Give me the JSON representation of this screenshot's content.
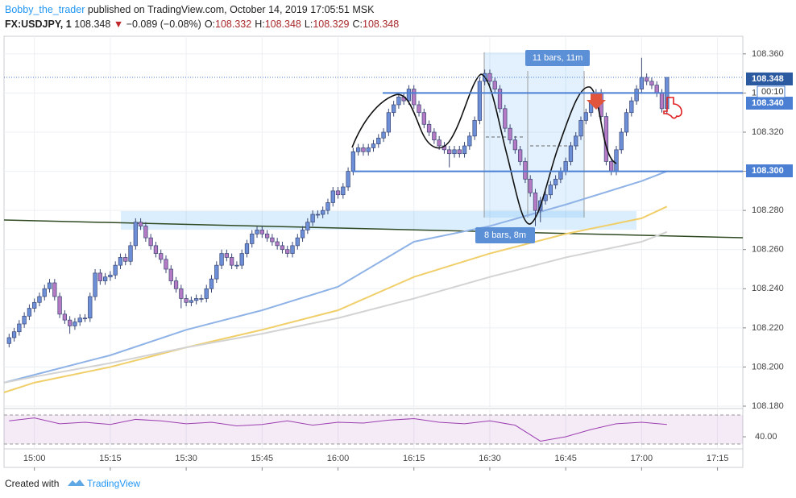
{
  "header": {
    "user": "Bobby_the_trader",
    "published": " published on TradingView.com, October 14, 2019 17:05:51 MSK",
    "symbol": "FX:USDJPY, 1",
    "last": "108.348",
    "change": "−0.089 (−0.08%)",
    "ohlc": [
      {
        "label": "O:",
        "value": "108.332"
      },
      {
        "label": "H:",
        "value": "108.348"
      },
      {
        "label": "L:",
        "value": "108.329"
      },
      {
        "label": "C:",
        "value": "108.348"
      }
    ]
  },
  "footer": {
    "created": "Created with",
    "brand": "TradingView"
  },
  "chart_data": {
    "type": "candlestick",
    "up_color": "#6d8fd8",
    "down_color": "#b57ac4",
    "outline": "#3a4775",
    "grid": true,
    "xlim": [
      894,
      1040
    ],
    "ylim": [
      108.18,
      108.369
    ],
    "xticks": [
      {
        "value": 900,
        "label": "15:00"
      },
      {
        "value": 915,
        "label": "15:15"
      },
      {
        "value": 930,
        "label": "15:30"
      },
      {
        "value": 945,
        "label": "15:45"
      },
      {
        "value": 960,
        "label": "16:00"
      },
      {
        "value": 975,
        "label": "16:15"
      },
      {
        "value": 990,
        "label": "16:30"
      },
      {
        "value": 1005,
        "label": "16:45"
      },
      {
        "value": 1020,
        "label": "17:00"
      },
      {
        "value": 1035,
        "label": "17:15"
      }
    ],
    "yticks": [
      {
        "value": 108.36,
        "label": "108.360"
      },
      {
        "value": 108.34,
        "label": "108.340"
      },
      {
        "value": 108.32,
        "label": "108.320"
      },
      {
        "value": 108.3,
        "label": "108.300"
      },
      {
        "value": 108.28,
        "label": "108.280"
      },
      {
        "value": 108.26,
        "label": "108.260"
      },
      {
        "value": 108.24,
        "label": "108.240"
      },
      {
        "value": 108.22,
        "label": "108.220"
      },
      {
        "value": 108.2,
        "label": "108.200"
      },
      {
        "value": 108.18,
        "label": "108.180"
      }
    ],
    "x": [
      895,
      896,
      897,
      898,
      899,
      900,
      901,
      902,
      903,
      904,
      905,
      906,
      907,
      908,
      909,
      910,
      911,
      912,
      913,
      914,
      915,
      916,
      917,
      918,
      919,
      920,
      921,
      922,
      923,
      924,
      925,
      926,
      927,
      928,
      929,
      930,
      931,
      932,
      933,
      934,
      935,
      936,
      937,
      938,
      939,
      940,
      941,
      942,
      943,
      944,
      945,
      946,
      947,
      948,
      949,
      950,
      951,
      952,
      953,
      954,
      955,
      956,
      957,
      958,
      959,
      960,
      961,
      962,
      963,
      964,
      965,
      966,
      967,
      968,
      969,
      970,
      971,
      972,
      973,
      974,
      975,
      976,
      977,
      978,
      979,
      980,
      981,
      982,
      983,
      984,
      985,
      986,
      987,
      988,
      989,
      990,
      991,
      992,
      993,
      994,
      995,
      996,
      997,
      998,
      999,
      1000,
      1001,
      1002,
      1003,
      1004,
      1005,
      1006,
      1007,
      1008,
      1009,
      1010,
      1011,
      1012,
      1013,
      1014,
      1015,
      1016,
      1017,
      1018,
      1019,
      1020,
      1021,
      1022,
      1023,
      1024,
      1025
    ],
    "candles": [
      [
        108.212,
        108.217,
        108.21,
        108.215
      ],
      [
        108.215,
        108.22,
        108.213,
        108.218
      ],
      [
        108.218,
        108.224,
        108.216,
        108.222
      ],
      [
        108.222,
        108.228,
        108.22,
        108.226
      ],
      [
        108.226,
        108.232,
        108.224,
        108.23
      ],
      [
        108.23,
        108.235,
        108.228,
        108.233
      ],
      [
        108.233,
        108.238,
        108.231,
        108.236
      ],
      [
        108.236,
        108.242,
        108.234,
        108.24
      ],
      [
        108.24,
        108.245,
        108.238,
        108.243
      ],
      [
        108.243,
        108.245,
        108.234,
        108.236
      ],
      [
        108.236,
        108.238,
        108.225,
        108.227
      ],
      [
        108.227,
        108.229,
        108.222,
        108.224
      ],
      [
        108.224,
        108.226,
        108.217,
        108.221
      ],
      [
        108.221,
        108.225,
        108.219,
        108.223
      ],
      [
        108.223,
        108.227,
        108.221,
        108.225
      ],
      [
        108.225,
        108.227,
        108.223,
        108.225
      ],
      [
        108.225,
        108.238,
        108.223,
        108.236
      ],
      [
        108.236,
        108.25,
        108.234,
        108.248
      ],
      [
        108.248,
        108.25,
        108.242,
        108.244
      ],
      [
        108.244,
        108.248,
        108.242,
        108.246
      ],
      [
        108.246,
        108.249,
        108.244,
        108.247
      ],
      [
        108.247,
        108.254,
        108.245,
        108.252
      ],
      [
        108.252,
        108.258,
        108.25,
        108.256
      ],
      [
        108.256,
        108.258,
        108.252,
        108.254
      ],
      [
        108.254,
        108.264,
        108.252,
        108.262
      ],
      [
        108.262,
        108.276,
        108.26,
        108.274
      ],
      [
        108.274,
        108.276,
        108.27,
        108.272
      ],
      [
        108.272,
        108.274,
        108.264,
        108.266
      ],
      [
        108.266,
        108.268,
        108.26,
        108.262
      ],
      [
        108.262,
        108.264,
        108.256,
        108.258
      ],
      [
        108.258,
        108.26,
        108.253,
        108.255
      ],
      [
        108.255,
        108.257,
        108.248,
        108.25
      ],
      [
        108.25,
        108.252,
        108.242,
        108.244
      ],
      [
        108.244,
        108.246,
        108.238,
        108.24
      ],
      [
        108.24,
        108.242,
        108.23,
        108.235
      ],
      [
        108.235,
        108.237,
        108.231,
        108.233
      ],
      [
        108.233,
        108.236,
        108.231,
        108.234
      ],
      [
        108.234,
        108.237,
        108.232,
        108.235
      ],
      [
        108.235,
        108.237,
        108.233,
        108.235
      ],
      [
        108.235,
        108.242,
        108.233,
        108.24
      ],
      [
        108.24,
        108.247,
        108.238,
        108.245
      ],
      [
        108.245,
        108.254,
        108.243,
        108.252
      ],
      [
        108.252,
        108.26,
        108.25,
        108.258
      ],
      [
        108.258,
        108.26,
        108.254,
        108.256
      ],
      [
        108.256,
        108.258,
        108.25,
        108.252
      ],
      [
        108.252,
        108.254,
        108.25,
        108.252
      ],
      [
        108.252,
        108.26,
        108.25,
        108.258
      ],
      [
        108.258,
        108.265,
        108.256,
        108.263
      ],
      [
        108.263,
        108.27,
        108.261,
        108.268
      ],
      [
        108.268,
        108.272,
        108.266,
        108.27
      ],
      [
        108.27,
        108.272,
        108.266,
        108.268
      ],
      [
        108.268,
        108.27,
        108.264,
        108.266
      ],
      [
        108.266,
        108.268,
        108.262,
        108.264
      ],
      [
        108.264,
        108.266,
        108.26,
        108.262
      ],
      [
        108.262,
        108.264,
        108.258,
        108.26
      ],
      [
        108.26,
        108.262,
        108.256,
        108.258
      ],
      [
        108.258,
        108.264,
        108.256,
        108.262
      ],
      [
        108.262,
        108.268,
        108.26,
        108.266
      ],
      [
        108.266,
        108.272,
        108.264,
        108.27
      ],
      [
        108.27,
        108.276,
        108.268,
        108.274
      ],
      [
        108.274,
        108.28,
        108.272,
        108.278
      ],
      [
        108.278,
        108.28,
        108.276,
        108.278
      ],
      [
        108.278,
        108.282,
        108.276,
        108.28
      ],
      [
        108.28,
        108.286,
        108.278,
        108.284
      ],
      [
        108.284,
        108.292,
        108.282,
        108.29
      ],
      [
        108.29,
        108.292,
        108.286,
        108.288
      ],
      [
        108.288,
        108.294,
        108.286,
        108.292
      ],
      [
        108.292,
        108.302,
        108.29,
        108.3
      ],
      [
        108.3,
        108.312,
        108.298,
        108.31
      ],
      [
        108.31,
        108.314,
        108.308,
        108.312
      ],
      [
        108.312,
        108.314,
        108.308,
        108.31
      ],
      [
        108.31,
        108.314,
        108.308,
        108.312
      ],
      [
        108.312,
        108.316,
        108.31,
        108.314
      ],
      [
        108.314,
        108.319,
        108.312,
        108.317
      ],
      [
        108.317,
        108.322,
        108.315,
        108.32
      ],
      [
        108.32,
        108.332,
        108.318,
        108.33
      ],
      [
        108.33,
        108.336,
        108.328,
        108.334
      ],
      [
        108.334,
        108.34,
        108.332,
        108.338
      ],
      [
        108.338,
        108.34,
        108.334,
        108.336
      ],
      [
        108.336,
        108.344,
        108.334,
        108.342
      ],
      [
        108.342,
        108.344,
        108.332,
        108.334
      ],
      [
        108.334,
        108.336,
        108.328,
        108.33
      ],
      [
        108.33,
        108.332,
        108.322,
        108.324
      ],
      [
        108.324,
        108.326,
        108.318,
        108.32
      ],
      [
        108.32,
        108.322,
        108.314,
        108.316
      ],
      [
        108.316,
        108.318,
        108.311,
        108.313
      ],
      [
        108.313,
        108.315,
        108.309,
        108.311
      ],
      [
        108.311,
        108.313,
        108.302,
        108.309
      ],
      [
        108.309,
        108.313,
        108.307,
        108.311
      ],
      [
        108.311,
        108.313,
        108.307,
        108.309
      ],
      [
        108.309,
        108.315,
        108.307,
        108.313
      ],
      [
        108.313,
        108.32,
        108.311,
        108.318
      ],
      [
        108.318,
        108.328,
        108.316,
        108.326
      ],
      [
        108.326,
        108.348,
        108.324,
        108.346
      ],
      [
        108.346,
        108.352,
        108.344,
        108.35
      ],
      [
        108.35,
        108.352,
        108.344,
        108.346
      ],
      [
        108.346,
        108.348,
        108.34,
        108.342
      ],
      [
        108.342,
        108.344,
        108.33,
        108.332
      ],
      [
        108.332,
        108.334,
        108.32,
        108.322
      ],
      [
        108.322,
        108.324,
        108.314,
        108.316
      ],
      [
        108.316,
        108.318,
        108.309,
        108.311
      ],
      [
        108.311,
        108.313,
        108.303,
        108.305
      ],
      [
        108.305,
        108.307,
        108.294,
        108.296
      ],
      [
        108.296,
        108.298,
        108.287,
        108.289
      ],
      [
        108.289,
        108.291,
        108.272,
        108.28
      ],
      [
        108.28,
        108.287,
        108.274,
        108.285
      ],
      [
        108.285,
        108.29,
        108.283,
        108.288
      ],
      [
        108.288,
        108.295,
        108.286,
        108.293
      ],
      [
        108.293,
        108.298,
        108.291,
        108.296
      ],
      [
        108.296,
        108.302,
        108.294,
        108.3
      ],
      [
        108.3,
        108.307,
        108.298,
        108.305
      ],
      [
        108.305,
        108.315,
        108.303,
        108.313
      ],
      [
        108.313,
        108.32,
        108.311,
        108.318
      ],
      [
        108.318,
        108.328,
        108.316,
        108.326
      ],
      [
        108.326,
        108.332,
        108.324,
        108.33
      ],
      [
        108.33,
        108.338,
        108.328,
        108.336
      ],
      [
        108.336,
        108.342,
        108.334,
        108.34
      ],
      [
        108.34,
        108.342,
        108.326,
        108.328
      ],
      [
        108.328,
        108.33,
        108.303,
        108.305
      ],
      [
        108.305,
        108.307,
        108.298,
        108.3
      ],
      [
        108.3,
        108.313,
        108.298,
        108.311
      ],
      [
        108.311,
        108.322,
        108.309,
        108.32
      ],
      [
        108.32,
        108.332,
        108.318,
        108.33
      ],
      [
        108.33,
        108.338,
        108.328,
        108.336
      ],
      [
        108.336,
        108.344,
        108.334,
        108.342
      ],
      [
        108.342,
        108.358,
        108.34,
        108.348
      ],
      [
        108.348,
        108.35,
        108.344,
        108.346
      ],
      [
        108.346,
        108.348,
        108.342,
        108.344
      ],
      [
        108.344,
        108.346,
        108.338,
        108.34
      ],
      [
        108.34,
        108.342,
        108.33,
        108.332
      ],
      [
        108.332,
        108.348,
        108.329,
        108.348
      ]
    ],
    "moving_averages": [
      {
        "color": "#8fb3e6",
        "x": [
          894,
          900,
          915,
          930,
          945,
          960,
          975,
          990,
          1005,
          1020,
          1025
        ],
        "values": [
          108.192,
          108.196,
          108.206,
          108.219,
          108.229,
          108.241,
          108.264,
          108.272,
          108.283,
          108.295,
          108.3
        ]
      },
      {
        "color": "#f0cf6a",
        "x": [
          894,
          900,
          915,
          930,
          945,
          960,
          975,
          990,
          1005,
          1020,
          1025
        ],
        "values": [
          108.187,
          108.192,
          108.2,
          108.21,
          108.219,
          108.229,
          108.246,
          108.258,
          108.268,
          108.276,
          108.282
        ]
      },
      {
        "color": "#d3d3d3",
        "x": [
          894,
          900,
          915,
          930,
          945,
          960,
          975,
          990,
          1005,
          1020,
          1025
        ],
        "values": [
          108.192,
          108.195,
          108.202,
          108.21,
          108.217,
          108.225,
          108.235,
          108.246,
          108.256,
          108.264,
          108.269
        ]
      }
    ],
    "levels": [
      {
        "value": 108.34,
        "label": "108.340"
      },
      {
        "value": 108.3,
        "label": "108.300"
      }
    ],
    "last": {
      "value": 108.348,
      "label": "108.348"
    },
    "countdown": "00:10",
    "annotations": [
      "11 bars, 11m",
      "8 bars, 8m"
    ],
    "rsi": {
      "color": "#9c3fb0",
      "ylim": [
        25.6,
        75.6
      ],
      "yticks": [
        {
          "value": 40,
          "label": "40.00"
        }
      ],
      "bands": [
        30,
        70
      ],
      "x": [
        895,
        900,
        905,
        910,
        915,
        920,
        925,
        930,
        935,
        940,
        945,
        950,
        955,
        960,
        965,
        970,
        975,
        980,
        985,
        990,
        995,
        1000,
        1005,
        1010,
        1015,
        1020,
        1025
      ],
      "values": [
        62,
        66,
        58,
        60,
        57,
        64,
        62,
        58,
        60,
        55,
        57,
        62,
        56,
        60,
        59,
        63,
        65,
        60,
        58,
        62,
        56,
        34,
        40,
        50,
        58,
        60,
        57
      ]
    }
  }
}
